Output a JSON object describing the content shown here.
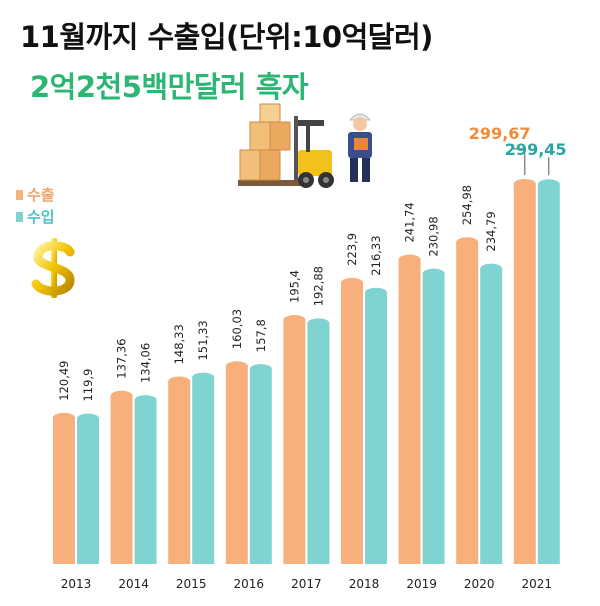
{
  "title": "11월까지 수출입(단위:10억달러)",
  "subtitle": "2억2천5백만달러 흑자",
  "colors": {
    "export": "#f7b07b",
    "import": "#7fd3d0",
    "highlight_export": "#f28a3c",
    "highlight_import": "#2aa5a0",
    "subtitle": "#2bb673"
  },
  "legend": [
    {
      "name": "수출",
      "icon": "orange-square-icon"
    },
    {
      "name": "수입",
      "icon": "teal-square-icon"
    }
  ],
  "decorations": [
    "dollar-sign-icon",
    "forklift-icon",
    "worker-icon"
  ],
  "chart_data": {
    "type": "bar",
    "title": "11월까지 수출입(단위:10억달러)",
    "subtitle": "2억2천5백만달러 흑자",
    "categories": [
      "2013",
      "2014",
      "2015",
      "2016",
      "2017",
      "2018",
      "2019",
      "2020",
      "2021"
    ],
    "series": [
      {
        "name": "수출",
        "values": [
          120.49,
          137.36,
          148.33,
          160.03,
          195.4,
          223.9,
          241.74,
          254.98,
          299.67
        ],
        "labels": [
          "120,49",
          "137,36",
          "148,33",
          "160,03",
          "195,4",
          "223,9",
          "241,74",
          "254,98",
          "299,67"
        ]
      },
      {
        "name": "수입",
        "values": [
          119.9,
          134.06,
          151.33,
          157.8,
          192.88,
          216.33,
          230.98,
          234.79,
          299.45
        ],
        "labels": [
          "119,9",
          "134,06",
          "151,33",
          "157,8",
          "192,88",
          "216,33",
          "230,98",
          "234,79",
          "299,45"
        ]
      }
    ],
    "xlabel": "",
    "ylabel": "",
    "ylim": [
      0,
      300
    ],
    "grid": false,
    "legend_position": "top-left"
  }
}
